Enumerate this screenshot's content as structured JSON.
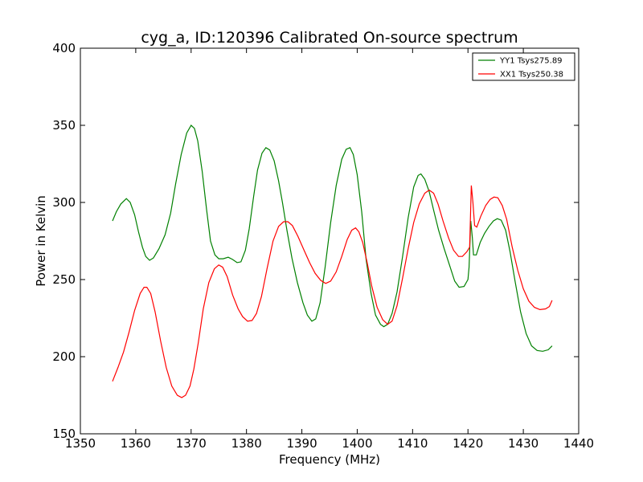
{
  "chart_data": {
    "type": "line",
    "title": "cyg_a, ID:120396 Calibrated On-source spectrum",
    "xlabel": "Frequency (MHz)",
    "ylabel": "Power in Kelvin",
    "xlim": [
      1350,
      1440
    ],
    "ylim": [
      150,
      400
    ],
    "xticks": [
      "1350",
      "1360",
      "1370",
      "1380",
      "1390",
      "1400",
      "1410",
      "1420",
      "1430",
      "1440"
    ],
    "yticks": [
      "150",
      "200",
      "250",
      "300",
      "350",
      "400"
    ],
    "grid": false,
    "legend_position": "top-right",
    "series": [
      {
        "name": "YY1 Tsys275.89",
        "color": "#008000",
        "points": [
          [
            1355.8,
            288
          ],
          [
            1356.5,
            294
          ],
          [
            1357.3,
            299
          ],
          [
            1358.3,
            302.5
          ],
          [
            1359.0,
            300
          ],
          [
            1359.8,
            292
          ],
          [
            1360.5,
            281
          ],
          [
            1361.2,
            271
          ],
          [
            1361.8,
            265
          ],
          [
            1362.5,
            262.5
          ],
          [
            1363.2,
            264
          ],
          [
            1364.2,
            270
          ],
          [
            1365.3,
            279
          ],
          [
            1366.3,
            293
          ],
          [
            1367.2,
            312
          ],
          [
            1368.2,
            331
          ],
          [
            1369.2,
            345
          ],
          [
            1370.0,
            350
          ],
          [
            1370.6,
            348
          ],
          [
            1371.2,
            340
          ],
          [
            1372.0,
            320
          ],
          [
            1372.8,
            295
          ],
          [
            1373.5,
            275
          ],
          [
            1374.3,
            266
          ],
          [
            1375.0,
            263.5
          ],
          [
            1375.8,
            263.5
          ],
          [
            1376.7,
            264.5
          ],
          [
            1377.5,
            263
          ],
          [
            1378.3,
            261
          ],
          [
            1379.0,
            261.5
          ],
          [
            1379.8,
            269
          ],
          [
            1380.5,
            283
          ],
          [
            1381.3,
            304
          ],
          [
            1382.0,
            321
          ],
          [
            1382.8,
            332
          ],
          [
            1383.5,
            335.5
          ],
          [
            1384.2,
            334
          ],
          [
            1385.0,
            327
          ],
          [
            1385.8,
            314
          ],
          [
            1386.5,
            300
          ],
          [
            1387.3,
            282
          ],
          [
            1388.2,
            264
          ],
          [
            1389.2,
            248
          ],
          [
            1390.2,
            235
          ],
          [
            1391.0,
            227
          ],
          [
            1391.8,
            223
          ],
          [
            1392.5,
            224.5
          ],
          [
            1393.3,
            235
          ],
          [
            1394.2,
            258
          ],
          [
            1395.2,
            287
          ],
          [
            1396.2,
            311
          ],
          [
            1397.2,
            328
          ],
          [
            1398.0,
            334.5
          ],
          [
            1398.7,
            335.5
          ],
          [
            1399.3,
            331
          ],
          [
            1400.0,
            318
          ],
          [
            1400.8,
            294
          ],
          [
            1401.6,
            263
          ],
          [
            1402.5,
            241
          ],
          [
            1403.3,
            227
          ],
          [
            1404.2,
            221
          ],
          [
            1404.8,
            219.5
          ],
          [
            1405.5,
            221
          ],
          [
            1406.3,
            228
          ],
          [
            1407.2,
            242
          ],
          [
            1408.2,
            265
          ],
          [
            1409.2,
            290
          ],
          [
            1410.2,
            310
          ],
          [
            1411.0,
            317.5
          ],
          [
            1411.5,
            318.5
          ],
          [
            1412.2,
            315
          ],
          [
            1413.0,
            307
          ],
          [
            1413.8,
            295
          ],
          [
            1414.7,
            282
          ],
          [
            1415.7,
            270
          ],
          [
            1416.7,
            259
          ],
          [
            1417.6,
            249
          ],
          [
            1418.4,
            245
          ],
          [
            1419.3,
            245.5
          ],
          [
            1420.0,
            250
          ],
          [
            1420.2,
            258
          ],
          [
            1420.5,
            288
          ],
          [
            1420.8,
            277
          ],
          [
            1421.0,
            266
          ],
          [
            1421.5,
            266
          ],
          [
            1422.2,
            274
          ],
          [
            1423.0,
            280
          ],
          [
            1423.8,
            284.5
          ],
          [
            1424.6,
            288
          ],
          [
            1425.3,
            289.5
          ],
          [
            1426.0,
            288.5
          ],
          [
            1426.8,
            282
          ],
          [
            1427.6,
            268
          ],
          [
            1428.5,
            249
          ],
          [
            1429.5,
            229
          ],
          [
            1430.5,
            215
          ],
          [
            1431.5,
            207
          ],
          [
            1432.5,
            204
          ],
          [
            1433.5,
            203.5
          ],
          [
            1434.5,
            204.5
          ],
          [
            1435.2,
            207
          ]
        ]
      },
      {
        "name": "XX1 Tsys250.38",
        "color": "#ff0000",
        "points": [
          [
            1355.8,
            184
          ],
          [
            1356.8,
            193
          ],
          [
            1357.8,
            203
          ],
          [
            1358.8,
            216
          ],
          [
            1359.8,
            230
          ],
          [
            1360.8,
            241
          ],
          [
            1361.5,
            245
          ],
          [
            1362.0,
            245
          ],
          [
            1362.7,
            241
          ],
          [
            1363.5,
            229
          ],
          [
            1364.5,
            210
          ],
          [
            1365.5,
            193
          ],
          [
            1366.5,
            181
          ],
          [
            1367.5,
            175
          ],
          [
            1368.3,
            173.5
          ],
          [
            1369.0,
            175
          ],
          [
            1369.8,
            181
          ],
          [
            1370.5,
            192
          ],
          [
            1371.3,
            209
          ],
          [
            1372.2,
            231
          ],
          [
            1373.2,
            248
          ],
          [
            1374.2,
            257
          ],
          [
            1375.0,
            259.5
          ],
          [
            1375.7,
            258
          ],
          [
            1376.5,
            252
          ],
          [
            1377.5,
            240
          ],
          [
            1378.5,
            231
          ],
          [
            1379.3,
            226
          ],
          [
            1380.2,
            223
          ],
          [
            1381.0,
            223.5
          ],
          [
            1381.8,
            228
          ],
          [
            1382.7,
            239
          ],
          [
            1383.7,
            257
          ],
          [
            1384.8,
            275
          ],
          [
            1385.8,
            284.5
          ],
          [
            1386.7,
            287.5
          ],
          [
            1387.5,
            287.5
          ],
          [
            1388.3,
            285
          ],
          [
            1389.3,
            278
          ],
          [
            1390.4,
            269
          ],
          [
            1391.4,
            261
          ],
          [
            1392.4,
            254
          ],
          [
            1393.4,
            249.5
          ],
          [
            1394.3,
            247.5
          ],
          [
            1395.2,
            249
          ],
          [
            1396.2,
            255
          ],
          [
            1397.2,
            265
          ],
          [
            1398.2,
            276
          ],
          [
            1399.0,
            282
          ],
          [
            1399.7,
            283.5
          ],
          [
            1400.3,
            281
          ],
          [
            1401.0,
            274
          ],
          [
            1401.8,
            261
          ],
          [
            1402.6,
            246
          ],
          [
            1403.6,
            232
          ],
          [
            1404.6,
            224
          ],
          [
            1405.5,
            221
          ],
          [
            1406.3,
            223
          ],
          [
            1407.2,
            233
          ],
          [
            1408.2,
            251
          ],
          [
            1409.2,
            270
          ],
          [
            1410.2,
            287
          ],
          [
            1411.2,
            299
          ],
          [
            1412.2,
            306
          ],
          [
            1413.0,
            308
          ],
          [
            1413.8,
            306
          ],
          [
            1414.6,
            299
          ],
          [
            1415.5,
            288
          ],
          [
            1416.5,
            277
          ],
          [
            1417.4,
            269
          ],
          [
            1418.3,
            265
          ],
          [
            1419.0,
            265
          ],
          [
            1419.8,
            268
          ],
          [
            1420.3,
            271
          ],
          [
            1420.6,
            311
          ],
          [
            1420.9,
            300
          ],
          [
            1421.2,
            285
          ],
          [
            1421.6,
            284
          ],
          [
            1422.3,
            291
          ],
          [
            1423.2,
            298
          ],
          [
            1424.0,
            302
          ],
          [
            1424.7,
            303.5
          ],
          [
            1425.4,
            303
          ],
          [
            1426.2,
            298
          ],
          [
            1427.0,
            289
          ],
          [
            1428.0,
            271
          ],
          [
            1429.0,
            256
          ],
          [
            1430.0,
            244
          ],
          [
            1431.0,
            236
          ],
          [
            1432.0,
            232
          ],
          [
            1433.0,
            230.5
          ],
          [
            1434.0,
            231
          ],
          [
            1434.7,
            232.5
          ],
          [
            1435.2,
            236.5
          ]
        ]
      }
    ]
  }
}
